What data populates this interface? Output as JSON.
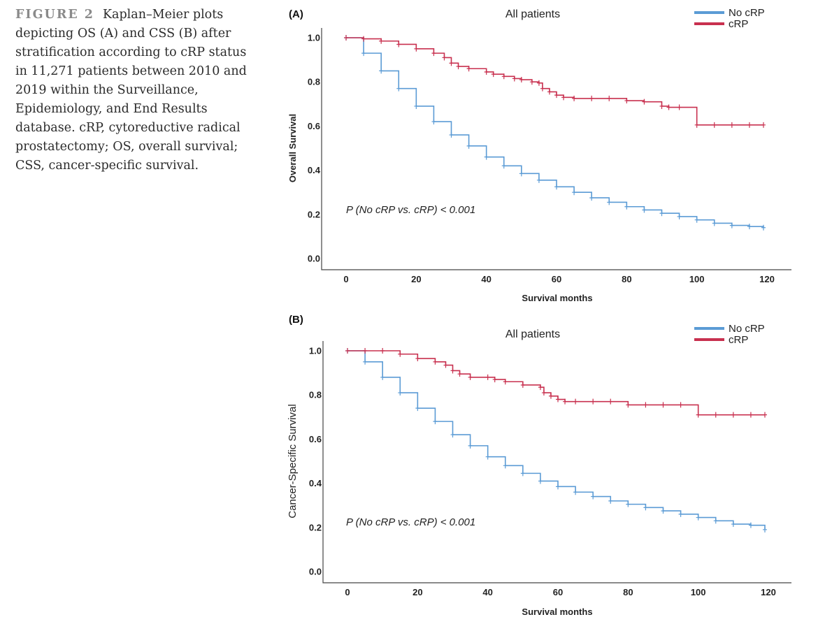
{
  "caption": {
    "figure_label": "FIGURE 2",
    "text": "Kaplan–Meier plots depicting OS (A) and CSS (B) after stratification according to cRP status in 11,271 patients between 2010 and 2019 within the Surveillance, Epidemiology, and End Results database. cRP, cytoreductive radical prostatectomy; OS, overall survival; CSS, cancer-specific survival."
  },
  "colors": {
    "no_crp": "#5b9bd5",
    "crp": "#c8304f"
  },
  "chart_data": [
    {
      "type": "line",
      "panel_label": "(A)",
      "title": "All patients",
      "xlabel": "Survival months",
      "ylabel": "Overall Survival",
      "xlim": [
        0,
        120
      ],
      "ylim": [
        0,
        1
      ],
      "x_ticks": [
        0,
        20,
        40,
        60,
        80,
        100,
        120
      ],
      "y_ticks": [
        "0.0",
        "0.2",
        "0.4",
        "0.6",
        "0.8",
        "1.0"
      ],
      "legend_position": "top-right",
      "annotation": "P (No cRP vs. cRP) < 0.001",
      "series": [
        {
          "name": "No cRP",
          "x": [
            0,
            5,
            10,
            15,
            20,
            25,
            30,
            35,
            40,
            45,
            50,
            55,
            60,
            65,
            70,
            75,
            80,
            85,
            90,
            95,
            100,
            105,
            110,
            115,
            119
          ],
          "y": [
            1.0,
            0.93,
            0.85,
            0.77,
            0.69,
            0.62,
            0.56,
            0.51,
            0.46,
            0.42,
            0.385,
            0.355,
            0.325,
            0.3,
            0.275,
            0.255,
            0.235,
            0.22,
            0.205,
            0.19,
            0.175,
            0.16,
            0.15,
            0.145,
            0.14
          ]
        },
        {
          "name": "cRP",
          "x": [
            0,
            5,
            10,
            15,
            20,
            25,
            28,
            30,
            32,
            35,
            40,
            42,
            45,
            48,
            50,
            53,
            55,
            56,
            58,
            60,
            62,
            65,
            70,
            75,
            80,
            85,
            90,
            92,
            95,
            100,
            105,
            110,
            115,
            119
          ],
          "y": [
            1.0,
            0.995,
            0.985,
            0.97,
            0.95,
            0.93,
            0.91,
            0.885,
            0.87,
            0.86,
            0.845,
            0.835,
            0.825,
            0.815,
            0.81,
            0.8,
            0.795,
            0.77,
            0.755,
            0.74,
            0.73,
            0.725,
            0.725,
            0.725,
            0.715,
            0.71,
            0.69,
            0.685,
            0.685,
            0.605,
            0.605,
            0.605,
            0.605,
            0.605
          ]
        }
      ]
    },
    {
      "type": "line",
      "panel_label": "(B)",
      "title": "All patients",
      "xlabel": "Survival months",
      "ylabel": "Cancer-Specific Survival",
      "xlim": [
        0,
        120
      ],
      "ylim": [
        0,
        1
      ],
      "x_ticks": [
        0,
        20,
        40,
        60,
        80,
        100,
        120
      ],
      "y_ticks": [
        "0.0",
        "0.2",
        "0.4",
        "0.6",
        "0.8",
        "1.0"
      ],
      "legend_position": "top-right",
      "annotation": "P (No cRP vs. cRP) < 0.001",
      "series": [
        {
          "name": "No cRP",
          "x": [
            0,
            5,
            10,
            15,
            20,
            25,
            30,
            35,
            40,
            45,
            50,
            55,
            60,
            65,
            70,
            75,
            80,
            85,
            90,
            95,
            100,
            105,
            110,
            115,
            119
          ],
          "y": [
            1.0,
            0.95,
            0.88,
            0.81,
            0.74,
            0.68,
            0.62,
            0.57,
            0.52,
            0.48,
            0.445,
            0.41,
            0.385,
            0.36,
            0.34,
            0.32,
            0.305,
            0.29,
            0.275,
            0.26,
            0.245,
            0.23,
            0.215,
            0.21,
            0.19
          ]
        },
        {
          "name": "cRP",
          "x": [
            0,
            5,
            10,
            15,
            20,
            25,
            28,
            30,
            32,
            35,
            40,
            42,
            45,
            50,
            55,
            56,
            58,
            60,
            62,
            65,
            70,
            75,
            80,
            85,
            90,
            95,
            100,
            105,
            110,
            115,
            119
          ],
          "y": [
            1.0,
            1.0,
            1.0,
            0.985,
            0.965,
            0.95,
            0.935,
            0.91,
            0.895,
            0.88,
            0.88,
            0.87,
            0.86,
            0.845,
            0.835,
            0.81,
            0.795,
            0.78,
            0.77,
            0.77,
            0.77,
            0.77,
            0.755,
            0.755,
            0.755,
            0.755,
            0.71,
            0.71,
            0.71,
            0.71,
            0.71
          ]
        }
      ]
    }
  ]
}
